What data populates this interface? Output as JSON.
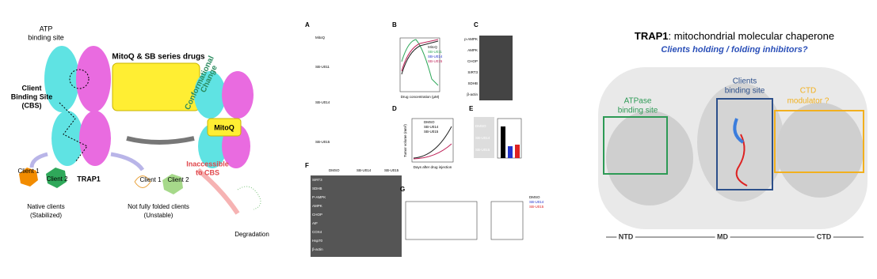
{
  "left_panel": {
    "atp_site": [
      "ATP",
      "binding site"
    ],
    "drugs_title": "MitoQ & SB series drugs",
    "cbs": [
      "Client",
      "Binding Site",
      "(CBS)"
    ],
    "conformational": [
      "Conformational",
      "Change"
    ],
    "mitoq": "MitoQ",
    "trap1": "TRAP1",
    "inaccessible": [
      "Inaccessible",
      "to CBS"
    ],
    "native_client_1": "Client 1",
    "native_client_2": "Client 2",
    "unfolded_client_1": "Client 1",
    "unfolded_client_2": "Client 2",
    "native_caption": [
      "Native clients",
      "(Stabilized)"
    ],
    "unfolded_caption": [
      "Not fully folded clients",
      "(Unstable)"
    ],
    "degradation": "Degradation"
  },
  "middle_panel": {
    "letters": [
      "A",
      "B",
      "C",
      "D",
      "E",
      "F",
      "G"
    ],
    "compounds": [
      "MitoQ",
      "SB-U011",
      "SB-U014",
      "SB-U015"
    ],
    "b_legend": [
      "MitoQ",
      "SB-U011",
      "SB-U014",
      "SB-U015"
    ],
    "b_xlabel": "Drug concentration (μM)",
    "c_rows": [
      "p-AMPK",
      "AMPK",
      "CHOP",
      "SIRT3",
      "SDHB",
      "β-actin"
    ],
    "d_legend": [
      "DMSO",
      "SB-U014",
      "SB-U015"
    ],
    "d_xlabel": "Days after drug injection",
    "d_ylabel": "Tumor volume (mm³)",
    "e_rows": [
      "DMSO",
      "SB-U014",
      "SB-U015"
    ],
    "f_groups": [
      "DMSO",
      "SB-U014",
      "SB-U015"
    ],
    "f_rows": [
      "SIRT3",
      "SDHB",
      "P-AMPK",
      "AMPK",
      "CHOP",
      "AIF",
      "COX4",
      "Hsp70",
      "β-actin"
    ],
    "g_legend": [
      "DMSO",
      "SB-U014",
      "SB-U015"
    ]
  },
  "right_panel": {
    "title_bold": "TRAP1",
    "title_rest": ": mitochondrial molecular chaperone",
    "subtitle": "Clients holding / folding inhibitors?",
    "atpase_site": [
      "ATPase",
      "binding site"
    ],
    "clients_site": [
      "Clients",
      "binding site"
    ],
    "ctd_modulator": [
      "CTD",
      "modulator ?"
    ],
    "domains": [
      "NTD",
      "MD",
      "CTD"
    ]
  }
}
